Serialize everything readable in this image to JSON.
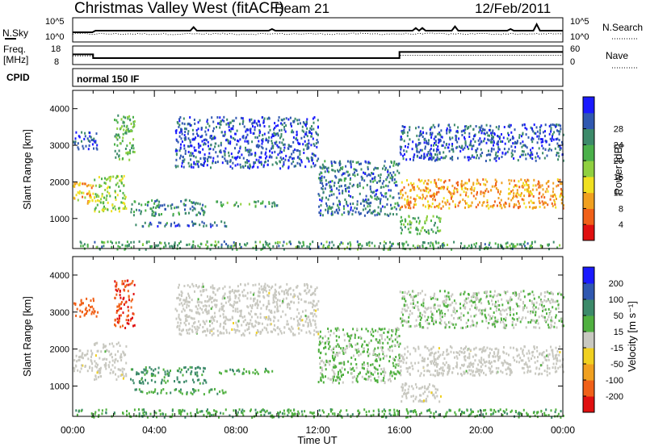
{
  "header": {
    "station": "Christmas Valley West (fitACF)",
    "beam": "Beam 21",
    "date": "12/Feb/2011"
  },
  "noise_panel": {
    "left_label": "N.Sky",
    "left_ticks": [
      "10^5",
      "10^0"
    ],
    "right_ticks": [
      "10^5",
      "10^0"
    ],
    "right_label": "N.Search"
  },
  "freq_panel": {
    "left_label_1": "Freq.",
    "left_label_2": "[MHz]",
    "left_ticks": [
      "18",
      "8"
    ],
    "right_ticks": [
      "60",
      "0"
    ],
    "right_label": "Nave"
  },
  "cpid_panel": {
    "label": "CPID",
    "program": "normal 150 IF"
  },
  "x_axis": {
    "ticks": [
      "00:00",
      "04:00",
      "08:00",
      "12:00",
      "16:00",
      "20:00",
      "00:00"
    ],
    "label": "Time UT"
  },
  "power_panel": {
    "ylabel": "Slant Range [km]",
    "yticks": [
      "1000",
      "2000",
      "3000",
      "4000"
    ],
    "colorbar_label": "Power [dB]",
    "colorbar_ticks": [
      "4",
      "8",
      "12",
      "16",
      "20",
      "24",
      "28"
    ],
    "colorbar_colors": [
      "#1a1aff",
      "#3058b0",
      "#3c8a6a",
      "#4ab04a",
      "#90d040",
      "#f0e020",
      "#f0a020",
      "#f06018",
      "#e01010"
    ]
  },
  "velocity_panel": {
    "ylabel": "Slant Range [km]",
    "yticks": [
      "1000",
      "2000",
      "3000",
      "4000"
    ],
    "colorbar_label": "Velocity [m s⁻¹]",
    "colorbar_ticks": [
      "200",
      "100",
      "50",
      "15",
      "-15",
      "-50",
      "-100",
      "-200"
    ],
    "colorbar_colors": [
      "#1a1aff",
      "#3058b0",
      "#3c8a6a",
      "#50b040",
      "#c8c8c0",
      "#f0d020",
      "#f0a020",
      "#f06018",
      "#e01010"
    ],
    "ground_scatter_color": "#c8c8c0"
  },
  "chart_data": {
    "type": "heatmap",
    "title": "Christmas Valley West (fitACF) Beam 21 12/Feb/2011",
    "x_range_hours": [
      0,
      24
    ],
    "y_range_km": [
      180,
      4500
    ],
    "xlabel": "Time UT",
    "ylabel": "Slant Range [km]",
    "frequency_mhz": [
      {
        "t": 0.0,
        "f": 13.5
      },
      {
        "t": 1.0,
        "f": 13.5
      },
      {
        "t": 1.0,
        "f": 11.5
      },
      {
        "t": 16.0,
        "f": 11.5
      },
      {
        "t": 16.0,
        "f": 14.8
      },
      {
        "t": 24.0,
        "f": 14.8
      }
    ],
    "nave": [
      {
        "t": 0.0,
        "n": 28
      },
      {
        "t": 1.0,
        "n": 28
      },
      {
        "t": 1.0,
        "n": 22
      },
      {
        "t": 16.0,
        "n": 22
      },
      {
        "t": 16.0,
        "n": 30
      },
      {
        "t": 24.0,
        "n": 30
      }
    ],
    "scatter_regions": [
      {
        "t0": 0.0,
        "t1": 1.0,
        "r0": 1400,
        "r1": 2000,
        "power_db": 24,
        "velocity": 0,
        "ground": true
      },
      {
        "t0": 1.0,
        "t1": 2.6,
        "r0": 1200,
        "r1": 2200,
        "power_db": 18,
        "velocity": 0,
        "ground": true
      },
      {
        "t0": 0.0,
        "t1": 1.2,
        "r0": 2900,
        "r1": 3400,
        "power_db": 6,
        "velocity": -120,
        "ground": false
      },
      {
        "t0": 2.0,
        "t1": 3.0,
        "r0": 2600,
        "r1": 3900,
        "power_db": 14,
        "velocity": -200,
        "ground": false
      },
      {
        "t0": 2.8,
        "t1": 6.5,
        "r0": 1100,
        "r1": 1550,
        "power_db": 10,
        "velocity": 60,
        "ground": false
      },
      {
        "t0": 3.0,
        "t1": 7.5,
        "r0": 800,
        "r1": 950,
        "power_db": 8,
        "velocity": 40,
        "ground": false
      },
      {
        "t0": 7.0,
        "t1": 10.0,
        "r0": 1350,
        "r1": 1500,
        "power_db": 12,
        "velocity": 40,
        "ground": false
      },
      {
        "t0": 5.0,
        "t1": 12.0,
        "r0": 2400,
        "r1": 3800,
        "power_db": 6,
        "velocity": 0,
        "ground": true
      },
      {
        "t0": 12.0,
        "t1": 16.0,
        "r0": 1100,
        "r1": 2600,
        "power_db": 8,
        "velocity": 20,
        "ground": false
      },
      {
        "t0": 16.0,
        "t1": 24.0,
        "r0": 1300,
        "r1": 2100,
        "power_db": 26,
        "velocity": 0,
        "ground": true
      },
      {
        "t0": 16.0,
        "t1": 18.0,
        "r0": 600,
        "r1": 1100,
        "power_db": 14,
        "velocity": -30,
        "ground": true
      },
      {
        "t0": 16.0,
        "t1": 24.0,
        "r0": 2600,
        "r1": 3600,
        "power_db": 6,
        "velocity": 10,
        "ground": false
      },
      {
        "t0": 0.0,
        "t1": 24.0,
        "r0": 180,
        "r1": 400,
        "power_db": 12,
        "velocity": 40,
        "ground": false
      }
    ]
  }
}
